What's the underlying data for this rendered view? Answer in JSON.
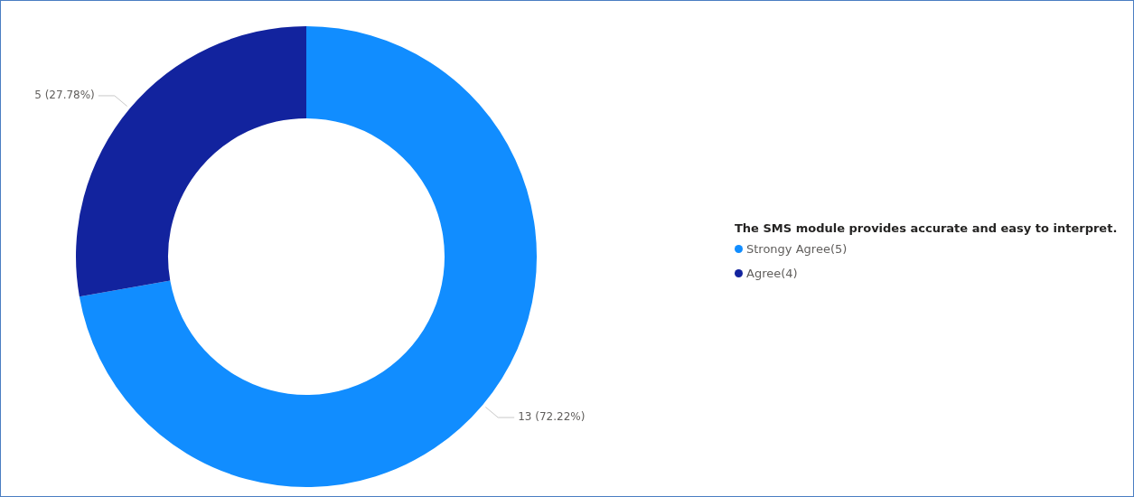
{
  "chart_data": {
    "type": "donut",
    "legend_title": "The SMS module provides accurate and easy to interpret.",
    "categories": [
      "Strongy Agree(5)",
      "Agree(4)"
    ],
    "values": [
      13,
      5
    ],
    "colors": [
      "#118dff",
      "#12239e"
    ],
    "value_labels": [
      "13 (72.22%)",
      "5 (27.78%)"
    ],
    "legend": "right"
  }
}
